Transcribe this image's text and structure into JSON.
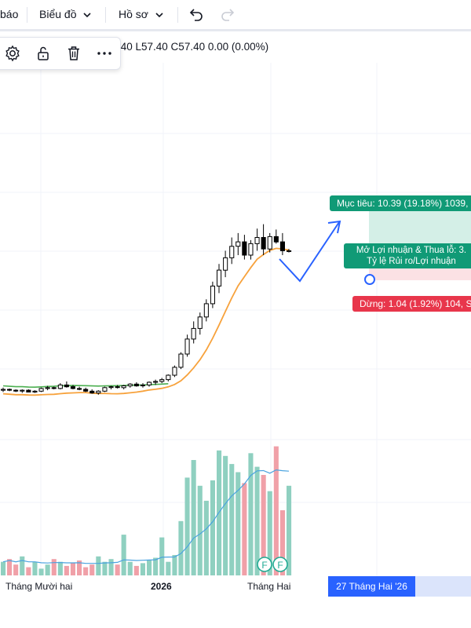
{
  "toolbar": {
    "item_1": "báo",
    "item_2": "Biểu đồ",
    "item_3": "Hồ sơ",
    "undo_icon": "undo-icon",
    "redo_icon": "redo-icon"
  },
  "floating_toolbar": {
    "icons": [
      "gear-icon",
      "lock-icon",
      "trash-icon",
      "more-icon"
    ]
  },
  "ohlc": ".40 L57.40 C57.40 0.00 (0.00%)",
  "position_tool": {
    "target_label": "Mục tiêu: 10.39 (19.18%) 1039,",
    "pnl_line1": "Mở Lợi nhuận & Thua lỗ: 3.",
    "pnl_line2": "Tỷ lệ Rủi ro/Lợi nhuận",
    "stop_label": "Dừng: 1.04 (1.92%) 104, S"
  },
  "x_axis": {
    "labels": [
      "Tháng Mười hai",
      "2026",
      "Tháng Hai"
    ],
    "cursor_label": "27 Tháng Hai '26"
  },
  "colors": {
    "up": "#000000",
    "down": "#000000",
    "ma_long": "#4caf50",
    "ma_short": "#f7a23c",
    "vol_up": "#8fd0c0",
    "vol_down": "#f0a0a8",
    "vol_ma": "#4aa3df",
    "target_zone": "#d4efe7",
    "stop_zone": "#fbe1e4",
    "arrow": "#2962ff"
  },
  "chart_data": {
    "type": "candlestick",
    "candles_ohlc_relative": [
      [
        0.52,
        0.55,
        0.5,
        0.53
      ],
      [
        0.53,
        0.54,
        0.51,
        0.52
      ],
      [
        0.52,
        0.53,
        0.5,
        0.51
      ],
      [
        0.51,
        0.53,
        0.49,
        0.52
      ],
      [
        0.52,
        0.53,
        0.5,
        0.5
      ],
      [
        0.5,
        0.52,
        0.49,
        0.51
      ],
      [
        0.51,
        0.55,
        0.5,
        0.54
      ],
      [
        0.54,
        0.57,
        0.52,
        0.55
      ],
      [
        0.55,
        0.56,
        0.53,
        0.54
      ],
      [
        0.54,
        0.6,
        0.53,
        0.58
      ],
      [
        0.58,
        0.62,
        0.55,
        0.56
      ],
      [
        0.56,
        0.58,
        0.53,
        0.54
      ],
      [
        0.54,
        0.56,
        0.52,
        0.53
      ],
      [
        0.53,
        0.55,
        0.5,
        0.51
      ],
      [
        0.51,
        0.53,
        0.48,
        0.49
      ],
      [
        0.49,
        0.52,
        0.47,
        0.51
      ],
      [
        0.51,
        0.56,
        0.5,
        0.55
      ],
      [
        0.55,
        0.57,
        0.53,
        0.56
      ],
      [
        0.56,
        0.58,
        0.54,
        0.55
      ],
      [
        0.55,
        0.58,
        0.53,
        0.57
      ],
      [
        0.57,
        0.6,
        0.55,
        0.59
      ],
      [
        0.59,
        0.61,
        0.56,
        0.57
      ],
      [
        0.57,
        0.6,
        0.55,
        0.58
      ],
      [
        0.58,
        0.62,
        0.56,
        0.61
      ],
      [
        0.61,
        0.64,
        0.58,
        0.62
      ],
      [
        0.62,
        0.66,
        0.6,
        0.64
      ],
      [
        0.64,
        0.7,
        0.62,
        0.69
      ],
      [
        0.69,
        0.8,
        0.67,
        0.78
      ],
      [
        0.78,
        0.95,
        0.76,
        0.93
      ],
      [
        0.93,
        1.15,
        0.9,
        1.1
      ],
      [
        1.1,
        1.3,
        1.05,
        1.22
      ],
      [
        1.22,
        1.4,
        1.15,
        1.35
      ],
      [
        1.35,
        1.55,
        1.3,
        1.5
      ],
      [
        1.5,
        1.75,
        1.45,
        1.7
      ],
      [
        1.7,
        1.95,
        1.62,
        1.88
      ],
      [
        1.88,
        2.1,
        1.8,
        2.02
      ],
      [
        2.02,
        2.25,
        1.95,
        2.15
      ],
      [
        2.15,
        2.3,
        2.05,
        2.2
      ],
      [
        2.2,
        2.28,
        2.0,
        2.05
      ],
      [
        2.05,
        2.22,
        2.0,
        2.18
      ],
      [
        2.18,
        2.35,
        2.1,
        2.25
      ],
      [
        2.25,
        2.4,
        2.05,
        2.12
      ],
      [
        2.12,
        2.3,
        2.08,
        2.26
      ],
      [
        2.26,
        2.34,
        2.18,
        2.2
      ],
      [
        2.2,
        2.3,
        2.05,
        2.1
      ],
      [
        2.1,
        2.12,
        2.08,
        2.1
      ]
    ],
    "volume_relative": [
      0.1,
      0.12,
      0.08,
      0.14,
      0.06,
      0.1,
      0.05,
      0.08,
      0.12,
      0.1,
      0.07,
      0.09,
      0.11,
      0.06,
      0.08,
      0.14,
      0.1,
      0.12,
      0.08,
      0.3,
      0.1,
      0.07,
      0.09,
      0.11,
      0.13,
      0.28,
      0.1,
      0.15,
      0.4,
      0.72,
      0.85,
      0.66,
      0.55,
      0.7,
      0.92,
      0.88,
      0.82,
      0.76,
      0.68,
      0.9,
      0.8,
      0.74,
      0.62,
      0.95,
      0.48,
      0.66
    ]
  }
}
